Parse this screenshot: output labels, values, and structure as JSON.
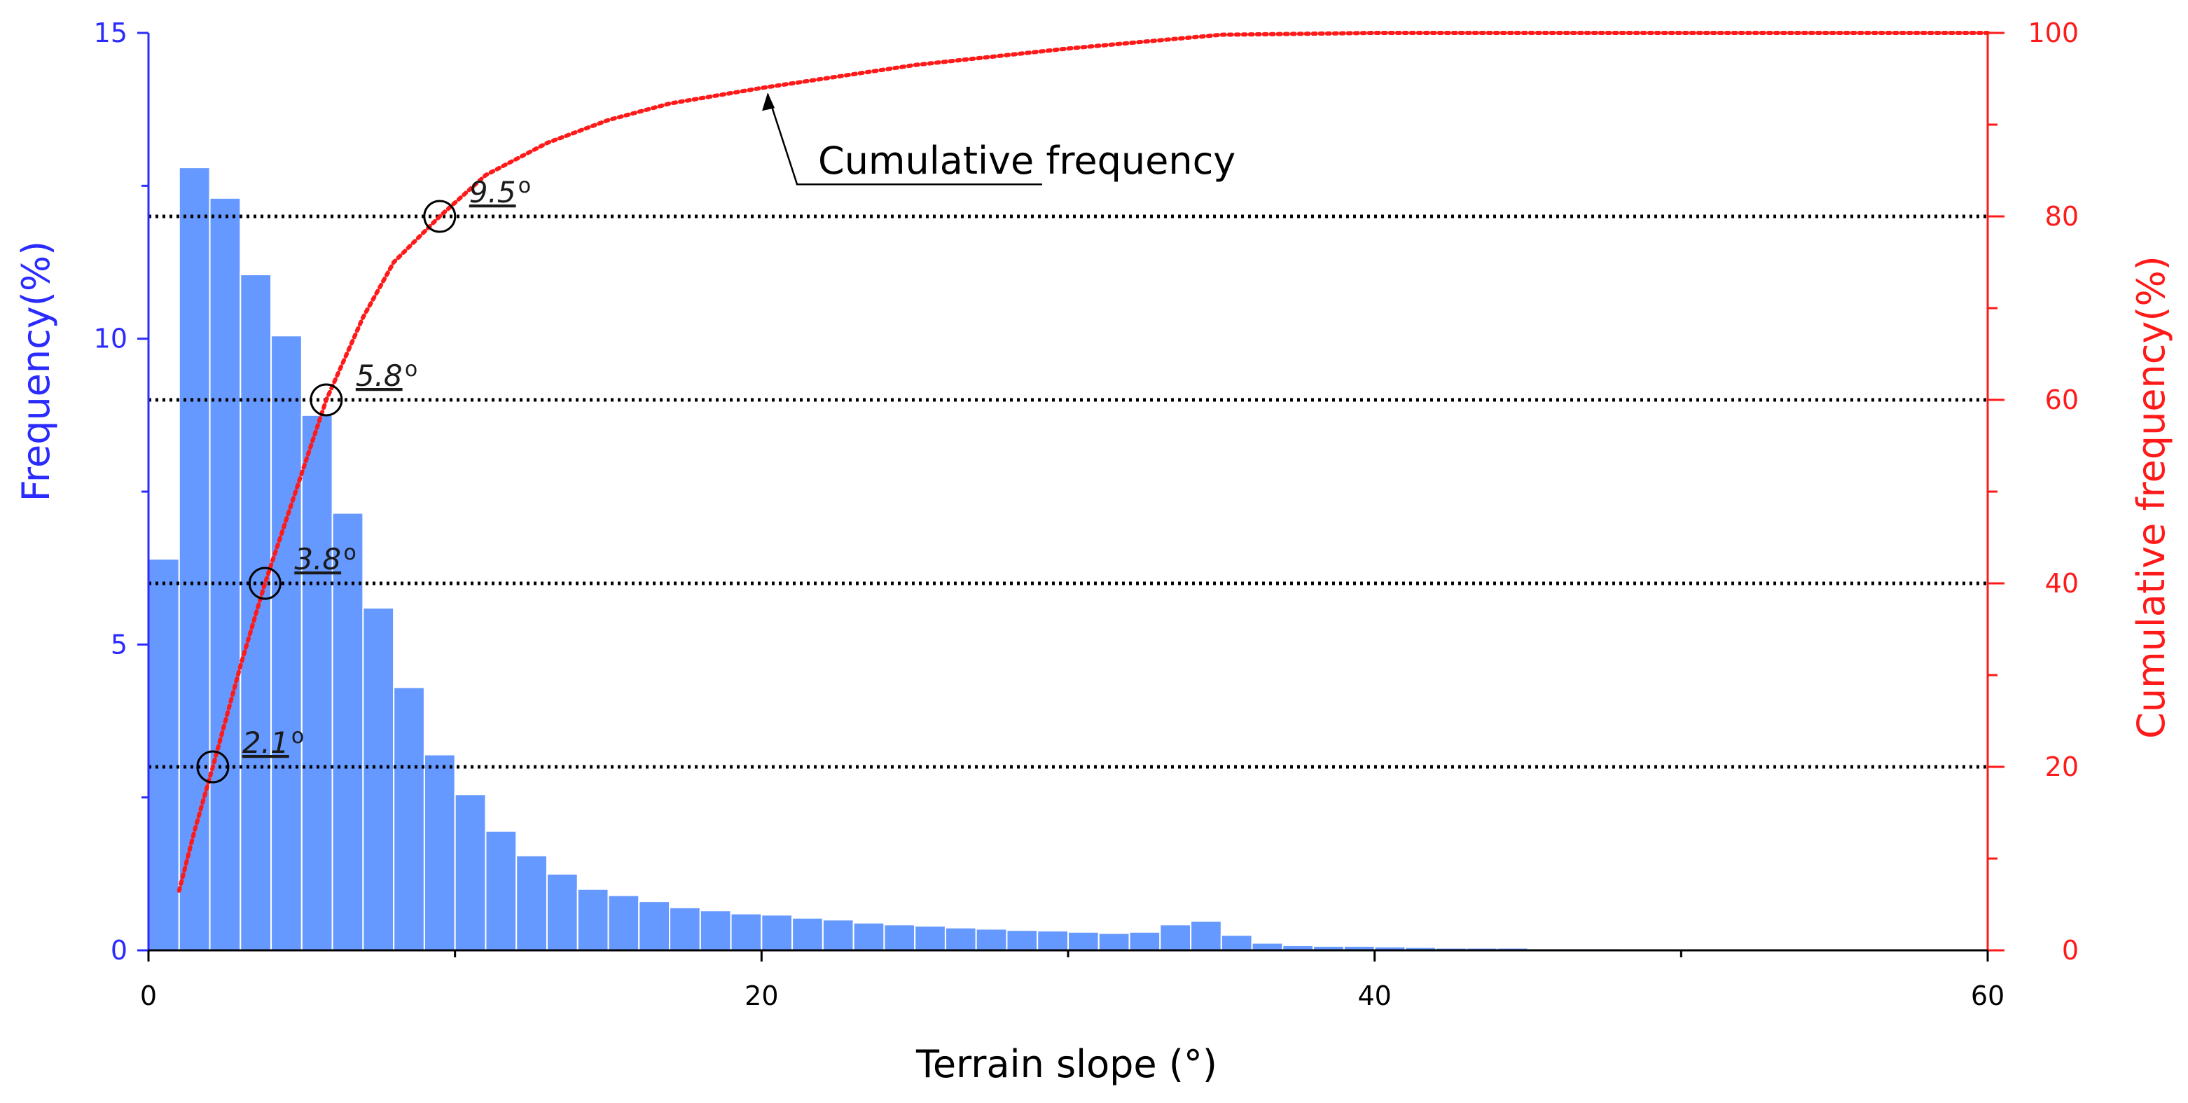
{
  "chart_data": {
    "type": "bar",
    "xlabel": "Terrain slope (°)",
    "ylabel": "Frequency(%)",
    "ylabel_right": "Cumulative frequency(%)",
    "xlim": [
      0,
      60
    ],
    "ylim": [
      0,
      15
    ],
    "ylim_right": [
      0,
      100
    ],
    "x_ticks": [
      "0",
      "20",
      "40",
      "60"
    ],
    "y_ticks_left": [
      "0",
      "5",
      "10",
      "15"
    ],
    "y_ticks_right": [
      "0",
      "20",
      "40",
      "60",
      "80",
      "100"
    ],
    "bin_width": 1,
    "series": [
      {
        "type": "bar",
        "x": [
          0.5,
          1.5,
          2.5,
          3.5,
          4.5,
          5.5,
          6.5,
          7.5,
          8.5,
          9.5,
          10.5,
          11.5,
          12.5,
          13.5,
          14.5,
          15.5,
          16.5,
          17.5,
          18.5,
          19.5,
          20.5,
          21.5,
          22.5,
          23.5,
          24.5,
          25.5,
          26.5,
          27.5,
          28.5,
          29.5,
          30.5,
          31.5,
          32.5,
          33.5,
          34.5,
          35.5,
          36.5,
          37.5,
          38.5,
          39.5,
          40.5,
          41.5,
          42.5,
          43.5,
          44.5,
          45.5,
          46.5,
          47.5,
          48.5,
          49.5,
          50.5,
          51.5,
          52.5,
          53.5,
          54.5,
          55.5,
          56.5,
          57.5,
          58.5,
          59.5
        ],
        "values": [
          6.4,
          12.8,
          12.3,
          11.05,
          10.05,
          8.75,
          7.15,
          5.6,
          4.3,
          3.2,
          2.55,
          1.95,
          1.55,
          1.25,
          1.0,
          0.9,
          0.8,
          0.7,
          0.65,
          0.6,
          0.58,
          0.53,
          0.5,
          0.45,
          0.42,
          0.4,
          0.37,
          0.35,
          0.33,
          0.32,
          0.3,
          0.28,
          0.3,
          0.42,
          0.48,
          0.25,
          0.12,
          0.08,
          0.07,
          0.07,
          0.06,
          0.05,
          0.04,
          0.04,
          0.04,
          0.03,
          0.03,
          0.03,
          0.02,
          0.02,
          0.02,
          0.02,
          0.02,
          0.02,
          0.02,
          0.02,
          0.01,
          0.01,
          0.01,
          0.01
        ],
        "color": "#6699ff"
      },
      {
        "name": "Cumulative frequency",
        "type": "line",
        "x": [
          1,
          1.5,
          2.1,
          3,
          3.8,
          4.8,
          5.8,
          7,
          8,
          9.5,
          11,
          13,
          15,
          17,
          20,
          25,
          30,
          35,
          40,
          50,
          60
        ],
        "values": [
          6.5,
          13,
          20,
          31,
          40,
          50,
          60,
          69,
          75,
          80,
          84.5,
          88,
          90.5,
          92.3,
          94,
          96.5,
          98.3,
          99.8,
          100,
          100,
          100
        ],
        "color": "#ff1a1a"
      }
    ],
    "reference_lines_right": [
      20,
      40,
      60,
      80
    ],
    "annotations": [
      {
        "text": "2.1",
        "suffix": "o",
        "x": 2.1,
        "y_right": 20
      },
      {
        "text": "3.8",
        "suffix": "o",
        "x": 3.8,
        "y_right": 40
      },
      {
        "text": "5.8",
        "suffix": "o",
        "x": 5.8,
        "y_right": 60
      },
      {
        "text": "9.5",
        "suffix": "o",
        "x": 9.5,
        "y_right": 80
      }
    ],
    "callout": {
      "text": "Cumulative frequency",
      "x": 20.2,
      "y_right": 93.8
    },
    "colors": {
      "left_axis": "#2b2bff",
      "right_axis": "#ff1a1a",
      "bars": "#6699ff",
      "bar_edge": "#ffffff"
    }
  }
}
